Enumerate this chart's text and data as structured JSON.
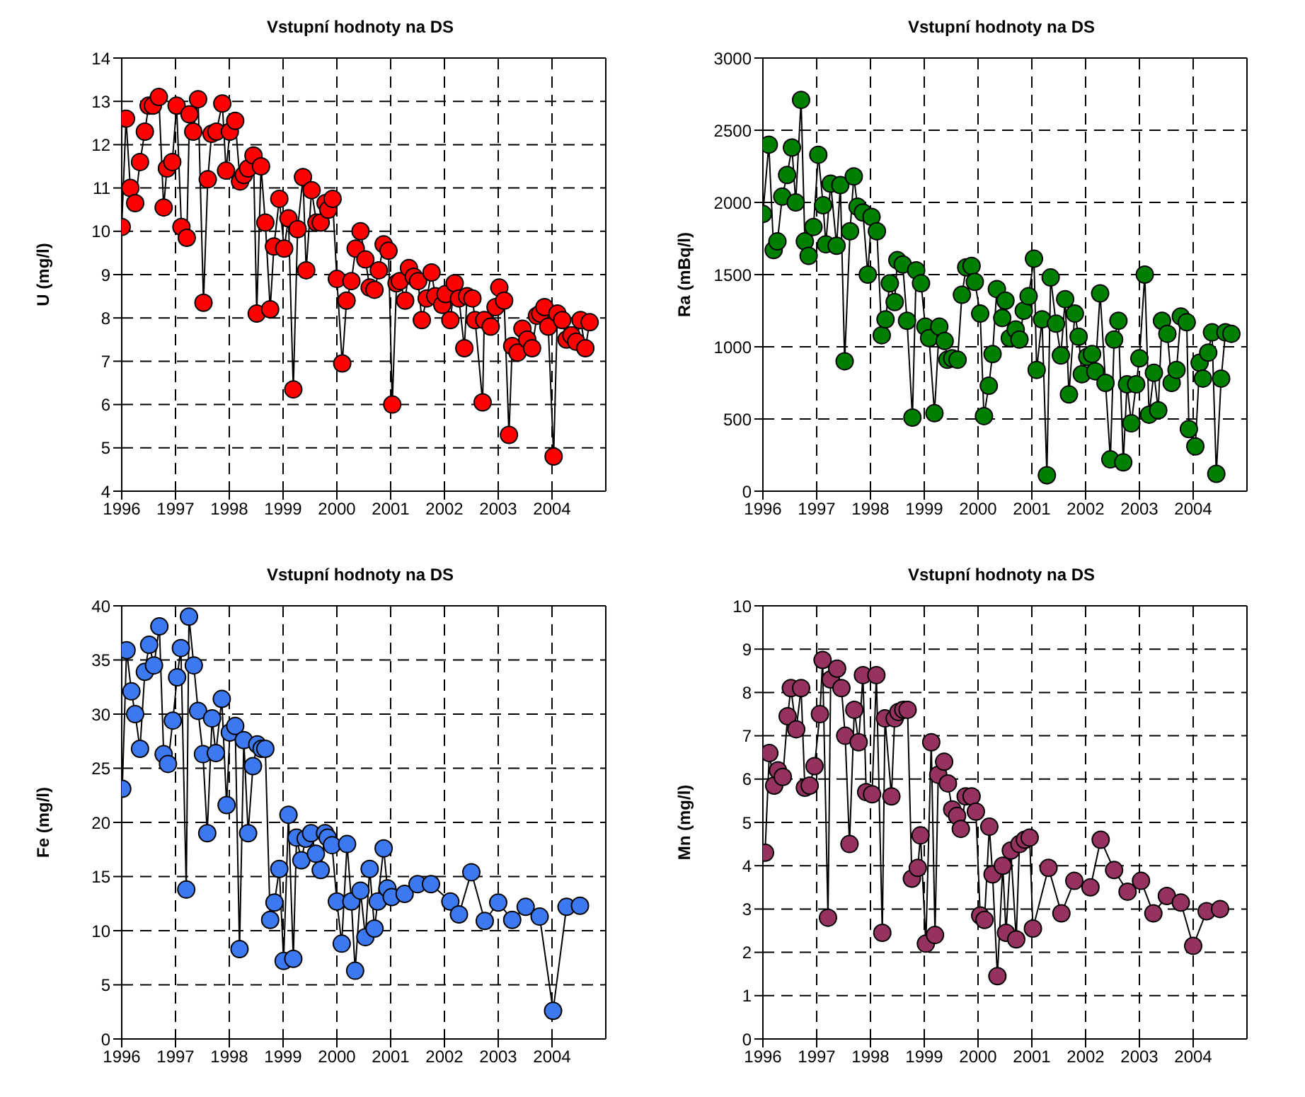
{
  "chart_data": [
    {
      "type": "line",
      "title": "Vstupní hodnoty na DS",
      "ylabel": "U (mg/l)",
      "color": "#ff0000",
      "marker": "circle",
      "grid": true,
      "xlim": [
        1996,
        2005
      ],
      "xticks": [
        1996,
        1997,
        1998,
        1999,
        2000,
        2001,
        2002,
        2003,
        2004
      ],
      "ylim": [
        4,
        14
      ],
      "yticks": [
        4,
        5,
        6,
        7,
        8,
        9,
        10,
        11,
        12,
        13,
        14
      ],
      "x": [
        1996.0,
        1996.08,
        1996.16,
        1996.25,
        1996.34,
        1996.43,
        1996.5,
        1996.58,
        1996.69,
        1996.78,
        1996.84,
        1996.94,
        1997.02,
        1997.11,
        1997.21,
        1997.26,
        1997.33,
        1997.42,
        1997.52,
        1997.6,
        1997.67,
        1997.76,
        1997.87,
        1997.94,
        1998.01,
        1998.11,
        1998.2,
        1998.27,
        1998.35,
        1998.45,
        1998.51,
        1998.59,
        1998.67,
        1998.76,
        1998.83,
        1998.93,
        1999.02,
        1999.1,
        1999.19,
        1999.27,
        1999.37,
        1999.43,
        1999.53,
        1999.62,
        1999.7,
        1999.79,
        1999.84,
        1999.92,
        2000.0,
        2000.1,
        2000.18,
        2000.27,
        2000.35,
        2000.44,
        2000.53,
        2000.61,
        2000.7,
        2000.78,
        2000.87,
        2000.96,
        2001.03,
        2001.11,
        2001.17,
        2001.27,
        2001.34,
        2001.43,
        2001.51,
        2001.58,
        2001.67,
        2001.76,
        2001.83,
        2001.96,
        2002.02,
        2002.11,
        2002.19,
        2002.27,
        2002.37,
        2002.42,
        2002.52,
        2002.57,
        2002.71,
        2002.74,
        2002.86,
        2002.95,
        2003.02,
        2003.11,
        2003.2,
        2003.26,
        2003.36,
        2003.45,
        2003.54,
        2003.63,
        2003.72,
        2003.78,
        2003.86,
        2003.93,
        2004.03,
        2004.1,
        2004.19,
        2004.27,
        2004.36,
        2004.45,
        2004.53,
        2004.62,
        2004.7
      ],
      "values": [
        10.1,
        12.6,
        11.0,
        10.65,
        11.6,
        12.3,
        12.9,
        12.9,
        13.1,
        10.55,
        11.45,
        11.6,
        12.9,
        10.1,
        9.85,
        12.7,
        12.3,
        13.05,
        8.35,
        11.2,
        12.25,
        12.3,
        12.95,
        11.4,
        12.3,
        12.55,
        11.15,
        11.3,
        11.45,
        11.75,
        8.1,
        11.5,
        10.2,
        8.2,
        9.65,
        10.75,
        9.6,
        10.3,
        6.35,
        10.05,
        11.25,
        9.1,
        10.95,
        10.2,
        10.2,
        10.65,
        10.5,
        10.75,
        8.9,
        6.95,
        8.4,
        8.85,
        9.6,
        10.0,
        9.35,
        8.7,
        8.65,
        9.1,
        9.7,
        9.55,
        6.0,
        8.8,
        8.85,
        8.4,
        9.15,
        8.95,
        8.85,
        7.95,
        8.45,
        9.05,
        8.5,
        8.3,
        8.55,
        7.95,
        8.8,
        8.45,
        7.3,
        8.5,
        8.45,
        7.95,
        6.05,
        7.95,
        7.8,
        8.25,
        8.7,
        8.4,
        5.3,
        7.35,
        7.2,
        7.75,
        7.5,
        7.3,
        8.05,
        8.1,
        8.25,
        7.8,
        4.8,
        8.1,
        7.95,
        7.5,
        7.6,
        7.45,
        7.95,
        7.3,
        7.9
      ]
    },
    {
      "type": "line",
      "title": "Vstupní hodnoty na DS",
      "ylabel": "Ra (mBq/l)",
      "color": "#008000",
      "marker": "circle",
      "grid": true,
      "xlim": [
        1996,
        2005
      ],
      "xticks": [
        1996,
        1997,
        1998,
        1999,
        2000,
        2001,
        2002,
        2003,
        2004
      ],
      "ylim": [
        0,
        3000
      ],
      "yticks": [
        0,
        500,
        1000,
        1500,
        2000,
        2500,
        3000
      ],
      "x": [
        1996.0,
        1996.11,
        1996.2,
        1996.27,
        1996.36,
        1996.45,
        1996.54,
        1996.61,
        1996.71,
        1996.78,
        1996.85,
        1996.94,
        1997.03,
        1997.12,
        1997.17,
        1997.26,
        1997.37,
        1997.44,
        1997.52,
        1997.62,
        1997.69,
        1997.76,
        1997.86,
        1997.95,
        1998.02,
        1998.12,
        1998.21,
        1998.28,
        1998.36,
        1998.45,
        1998.5,
        1998.6,
        1998.68,
        1998.78,
        1998.85,
        1998.94,
        1999.02,
        1999.09,
        1999.19,
        1999.28,
        1999.38,
        1999.43,
        1999.52,
        1999.62,
        1999.7,
        1999.78,
        1999.88,
        1999.94,
        2000.04,
        2000.11,
        2000.2,
        2000.27,
        2000.35,
        2000.45,
        2000.51,
        2000.59,
        2000.7,
        2000.77,
        2000.85,
        2000.94,
        2001.04,
        2001.09,
        2001.19,
        2001.28,
        2001.35,
        2001.45,
        2001.54,
        2001.62,
        2001.69,
        2001.8,
        2001.87,
        2001.93,
        2002.03,
        2002.12,
        2002.18,
        2002.27,
        2002.37,
        2002.46,
        2002.53,
        2002.61,
        2002.7,
        2002.77,
        2002.85,
        2002.94,
        2003.0,
        2003.1,
        2003.18,
        2003.27,
        2003.35,
        2003.42,
        2003.52,
        2003.6,
        2003.69,
        2003.77,
        2003.88,
        2003.92,
        2004.04,
        2004.12,
        2004.18,
        2004.28,
        2004.35,
        2004.43,
        2004.52,
        2004.6,
        2004.71
      ],
      "values": [
        1920,
        2400,
        1670,
        1730,
        2040,
        2190,
        2380,
        2000,
        2710,
        1730,
        1630,
        1830,
        2330,
        1980,
        1710,
        2130,
        1700,
        2120,
        900,
        1800,
        2180,
        1970,
        1930,
        1500,
        1900,
        1800,
        1080,
        1190,
        1440,
        1310,
        1600,
        1570,
        1180,
        510,
        1530,
        1440,
        1140,
        1060,
        540,
        1140,
        1040,
        910,
        920,
        910,
        1360,
        1550,
        1560,
        1450,
        1230,
        520,
        730,
        950,
        1400,
        1200,
        1320,
        1060,
        1120,
        1050,
        1250,
        1350,
        1610,
        840,
        1190,
        110,
        1480,
        1160,
        940,
        1330,
        670,
        1230,
        1070,
        810,
        930,
        950,
        830,
        1370,
        750,
        220,
        1050,
        1180,
        200,
        740,
        470,
        740,
        920,
        1500,
        530,
        820,
        560,
        1180,
        1090,
        750,
        840,
        1210,
        1170,
        430,
        310,
        890,
        780,
        960,
        1100,
        120,
        780,
        1100,
        1090
      ]
    },
    {
      "type": "line",
      "title": "Vstupní hodnoty na DS",
      "ylabel": "Fe (mg/l)",
      "color": "#3c78f0",
      "marker": "circle",
      "grid": true,
      "xlim": [
        1996,
        2005
      ],
      "xticks": [
        1996,
        1997,
        1998,
        1999,
        2000,
        2001,
        2002,
        2003,
        2004
      ],
      "ylim": [
        0,
        40
      ],
      "yticks": [
        0,
        5,
        10,
        15,
        20,
        25,
        30,
        35,
        40
      ],
      "x": [
        1996.01,
        1996.09,
        1996.18,
        1996.25,
        1996.34,
        1996.43,
        1996.51,
        1996.6,
        1996.7,
        1996.78,
        1996.86,
        1996.95,
        1997.03,
        1997.1,
        1997.2,
        1997.25,
        1997.34,
        1997.42,
        1997.51,
        1997.59,
        1997.68,
        1997.75,
        1997.86,
        1997.95,
        1998.01,
        1998.11,
        1998.19,
        1998.27,
        1998.35,
        1998.44,
        1998.52,
        1998.6,
        1998.67,
        1998.76,
        1998.84,
        1998.93,
        1999.01,
        1999.1,
        1999.19,
        1999.25,
        1999.34,
        1999.42,
        1999.52,
        1999.61,
        1999.7,
        1999.78,
        1999.83,
        1999.91,
        2000.0,
        2000.09,
        2000.19,
        2000.27,
        2000.34,
        2000.44,
        2000.53,
        2000.61,
        2000.7,
        2000.76,
        2000.87,
        2000.94,
        2001.02,
        2001.26,
        2001.5,
        2001.75,
        2002.11,
        2002.27,
        2002.5,
        2002.75,
        2003.0,
        2003.26,
        2003.51,
        2003.77,
        2004.02,
        2004.27,
        2004.52
      ],
      "values": [
        23.1,
        35.9,
        32.1,
        30.0,
        26.8,
        33.9,
        36.4,
        34.5,
        38.1,
        26.3,
        25.4,
        29.4,
        33.4,
        36.1,
        13.8,
        39.0,
        34.5,
        30.3,
        26.3,
        19.0,
        29.6,
        26.4,
        31.4,
        21.6,
        28.3,
        28.9,
        8.3,
        27.6,
        19.0,
        25.2,
        27.2,
        26.8,
        26.8,
        11.0,
        12.6,
        15.7,
        7.2,
        20.7,
        7.4,
        18.6,
        16.5,
        18.5,
        19.0,
        17.1,
        15.6,
        19.0,
        18.6,
        17.9,
        12.7,
        8.8,
        18.0,
        12.7,
        6.3,
        13.7,
        9.4,
        15.7,
        10.2,
        12.7,
        17.6,
        13.9,
        13.1,
        13.4,
        14.3,
        14.3,
        12.7,
        11.5,
        15.4,
        10.9,
        12.6,
        11.0,
        12.2,
        11.3,
        2.6,
        12.2,
        12.3
      ]
    },
    {
      "type": "line",
      "title": "Vstupní hodnoty na DS",
      "ylabel": "Mn (mg/l)",
      "color": "#96325f",
      "marker": "circle",
      "grid": true,
      "xlim": [
        1996,
        2005
      ],
      "xticks": [
        1996,
        1997,
        1998,
        1999,
        2000,
        2001,
        2002,
        2003,
        2004
      ],
      "ylim": [
        0,
        10
      ],
      "yticks": [
        0,
        1,
        2,
        3,
        4,
        5,
        6,
        7,
        8,
        9,
        10
      ],
      "x": [
        1996.04,
        1996.12,
        1996.21,
        1996.28,
        1996.37,
        1996.46,
        1996.52,
        1996.62,
        1996.71,
        1996.78,
        1996.87,
        1996.96,
        1997.06,
        1997.11,
        1997.21,
        1997.26,
        1997.38,
        1997.46,
        1997.53,
        1997.61,
        1997.7,
        1997.78,
        1997.86,
        1997.92,
        1998.03,
        1998.11,
        1998.22,
        1998.27,
        1998.39,
        1998.45,
        1998.52,
        1998.61,
        1998.69,
        1998.77,
        1998.88,
        1998.93,
        1999.03,
        1999.13,
        1999.2,
        1999.26,
        1999.37,
        1999.44,
        1999.52,
        1999.61,
        1999.68,
        1999.77,
        1999.88,
        1999.96,
        2000.04,
        2000.12,
        2000.21,
        2000.27,
        2000.36,
        2000.46,
        2000.52,
        2000.61,
        2000.71,
        2000.77,
        2000.87,
        2000.96,
        2001.02,
        2001.31,
        2001.55,
        2001.79,
        2002.09,
        2002.28,
        2002.53,
        2002.78,
        2003.03,
        2003.26,
        2003.51,
        2003.77,
        2004.0,
        2004.25,
        2004.5
      ],
      "values": [
        4.3,
        6.6,
        5.85,
        6.2,
        6.05,
        7.45,
        8.1,
        7.15,
        8.1,
        5.8,
        5.85,
        6.3,
        7.5,
        8.75,
        2.8,
        8.3,
        8.55,
        8.1,
        7.0,
        4.5,
        7.6,
        6.85,
        8.4,
        5.7,
        5.65,
        8.4,
        2.45,
        7.4,
        5.6,
        7.4,
        7.55,
        7.6,
        7.6,
        3.7,
        3.95,
        4.7,
        2.2,
        6.85,
        2.4,
        6.1,
        6.4,
        5.9,
        5.3,
        5.15,
        4.85,
        5.6,
        5.6,
        5.25,
        2.85,
        2.75,
        4.9,
        3.8,
        1.45,
        4.0,
        2.45,
        4.35,
        2.3,
        4.5,
        4.6,
        4.65,
        2.55,
        3.95,
        2.9,
        3.65,
        3.5,
        4.6,
        3.9,
        3.4,
        3.65,
        2.9,
        3.3,
        3.15,
        2.15,
        2.95,
        3.0
      ]
    }
  ]
}
